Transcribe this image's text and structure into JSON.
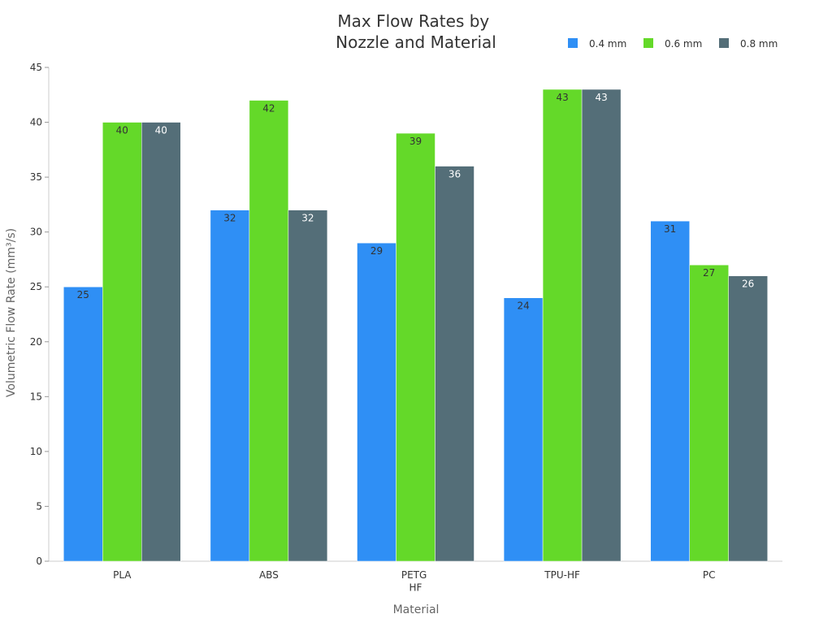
{
  "chart_data": {
    "type": "bar",
    "title": "Max Flow Rates by Nozzle and Material",
    "x_label": "Material",
    "y_label": "Volumetric Flow Rate (mm³/s)",
    "categories": [
      "PLA",
      "ABS",
      "PETG HF",
      "TPU-HF",
      "PC"
    ],
    "series": [
      {
        "name": "0.4 mm",
        "color": "#2f8ff5",
        "values": [
          25,
          32,
          29,
          24,
          31
        ]
      },
      {
        "name": "0.6 mm",
        "color": "#64d929",
        "values": [
          40,
          42,
          39,
          43,
          27
        ]
      },
      {
        "name": "0.8 mm",
        "color": "#546e78",
        "values": [
          40,
          32,
          36,
          43,
          26
        ]
      }
    ],
    "ylim": [
      0,
      45
    ],
    "yticks": [
      0,
      5,
      10,
      15,
      20,
      25,
      30,
      35,
      40,
      45
    ],
    "legend": "top-right",
    "grid": false
  }
}
